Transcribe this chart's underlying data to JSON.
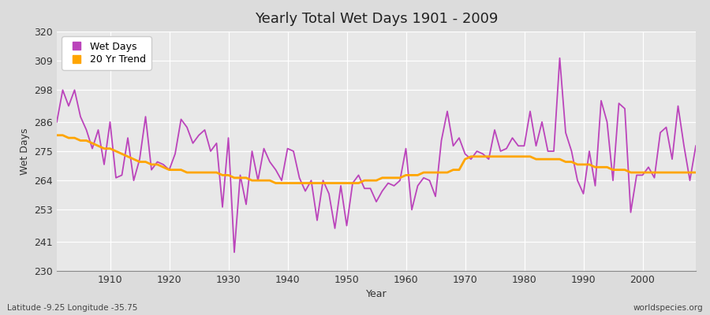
{
  "title": "Yearly Total Wet Days 1901 - 2009",
  "xlabel": "Year",
  "ylabel": "Wet Days",
  "ylim": [
    230,
    320
  ],
  "yticks": [
    230,
    241,
    253,
    264,
    275,
    286,
    298,
    309,
    320
  ],
  "xlim": [
    1901,
    2009
  ],
  "xticks": [
    1910,
    1920,
    1930,
    1940,
    1950,
    1960,
    1970,
    1980,
    1990,
    2000
  ],
  "wet_days_color": "#BB44BB",
  "trend_color": "#FFA500",
  "fig_bg_color": "#DCDCDC",
  "plot_bg_color": "#E8E8E8",
  "grid_color": "#FFFFFF",
  "footnote_left": "Latitude -9.25 Longitude -35.75",
  "footnote_right": "worldspecies.org",
  "legend_labels": [
    "Wet Days",
    "20 Yr Trend"
  ],
  "years": [
    1901,
    1902,
    1903,
    1904,
    1905,
    1906,
    1907,
    1908,
    1909,
    1910,
    1911,
    1912,
    1913,
    1914,
    1915,
    1916,
    1917,
    1918,
    1919,
    1920,
    1921,
    1922,
    1923,
    1924,
    1925,
    1926,
    1927,
    1928,
    1929,
    1930,
    1931,
    1932,
    1933,
    1934,
    1935,
    1936,
    1937,
    1938,
    1939,
    1940,
    1941,
    1942,
    1943,
    1944,
    1945,
    1946,
    1947,
    1948,
    1949,
    1950,
    1951,
    1952,
    1953,
    1954,
    1955,
    1956,
    1957,
    1958,
    1959,
    1960,
    1961,
    1962,
    1963,
    1964,
    1965,
    1966,
    1967,
    1968,
    1969,
    1970,
    1971,
    1972,
    1973,
    1974,
    1975,
    1976,
    1977,
    1978,
    1979,
    1980,
    1981,
    1982,
    1983,
    1984,
    1985,
    1986,
    1987,
    1988,
    1989,
    1990,
    1991,
    1992,
    1993,
    1994,
    1995,
    1996,
    1997,
    1998,
    1999,
    2000,
    2001,
    2002,
    2003,
    2004,
    2005,
    2006,
    2007,
    2008,
    2009
  ],
  "wet_days": [
    286,
    298,
    292,
    298,
    288,
    283,
    276,
    283,
    270,
    286,
    265,
    266,
    280,
    264,
    272,
    288,
    268,
    271,
    270,
    268,
    274,
    287,
    284,
    278,
    281,
    283,
    275,
    278,
    254,
    280,
    237,
    266,
    255,
    275,
    264,
    276,
    271,
    268,
    264,
    276,
    275,
    265,
    260,
    264,
    249,
    264,
    259,
    246,
    262,
    247,
    263,
    266,
    261,
    261,
    256,
    260,
    263,
    262,
    264,
    276,
    253,
    262,
    265,
    264,
    258,
    279,
    290,
    277,
    280,
    274,
    272,
    275,
    274,
    272,
    283,
    275,
    276,
    280,
    277,
    277,
    290,
    277,
    286,
    275,
    275,
    310,
    282,
    275,
    264,
    259,
    275,
    262,
    294,
    286,
    264,
    293,
    291,
    252,
    266,
    266,
    269,
    265,
    282,
    284,
    272,
    292,
    277,
    264,
    277
  ],
  "trend": [
    281,
    281,
    280,
    280,
    279,
    279,
    278,
    277,
    276,
    276,
    275,
    274,
    273,
    272,
    271,
    271,
    270,
    270,
    269,
    268,
    268,
    268,
    267,
    267,
    267,
    267,
    267,
    267,
    266,
    266,
    265,
    265,
    265,
    264,
    264,
    264,
    264,
    263,
    263,
    263,
    263,
    263,
    263,
    263,
    263,
    263,
    263,
    263,
    263,
    263,
    263,
    263,
    264,
    264,
    264,
    265,
    265,
    265,
    265,
    266,
    266,
    266,
    267,
    267,
    267,
    267,
    267,
    268,
    268,
    272,
    273,
    273,
    273,
    273,
    273,
    273,
    273,
    273,
    273,
    273,
    273,
    272,
    272,
    272,
    272,
    272,
    271,
    271,
    270,
    270,
    270,
    269,
    269,
    269,
    268,
    268,
    268,
    267,
    267,
    267,
    267,
    267,
    267,
    267,
    267,
    267,
    267,
    267,
    267
  ]
}
